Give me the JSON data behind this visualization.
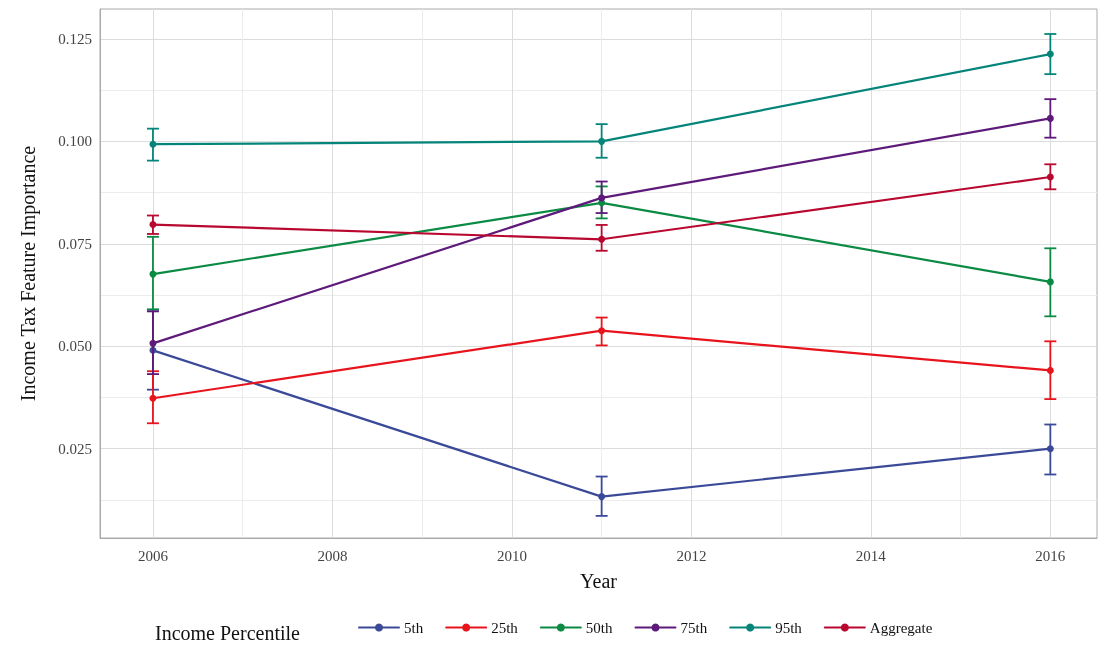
{
  "chart_data": {
    "type": "line",
    "xlabel": "Year",
    "ylabel": "Income Tax Feature Importance",
    "legend_title": "Income Percentile",
    "legend": "bottom",
    "grid": true,
    "marker": "circle",
    "line_style": "solid",
    "x": [
      2006,
      2011,
      2016
    ],
    "xlim": [
      2005.41,
      2016.52
    ],
    "xticks": [
      2006,
      2008,
      2010,
      2012,
      2014,
      2016
    ],
    "ylim": [
      0.0032,
      0.1323
    ],
    "yticks": [
      {
        "value": 0.025,
        "label": "0.025"
      },
      {
        "value": 0.05,
        "label": "0.050"
      },
      {
        "value": 0.075,
        "label": "0.075"
      },
      {
        "value": 0.1,
        "label": "0.100"
      },
      {
        "value": 0.125,
        "label": "0.125"
      }
    ],
    "series": [
      {
        "name": "5th",
        "color": "#3b4a98",
        "values": [
          0.049,
          0.0133,
          0.025
        ],
        "errors": [
          [
            0.0394,
            0.0589
          ],
          [
            0.0086,
            0.0182
          ],
          [
            0.0187,
            0.0309
          ]
        ]
      },
      {
        "name": "25th",
        "color": "#e8141c",
        "values": [
          0.0373,
          0.0538,
          0.0441
        ],
        "errors": [
          [
            0.0312,
            0.0439
          ],
          [
            0.0502,
            0.057
          ],
          [
            0.0371,
            0.0512
          ]
        ]
      },
      {
        "name": "50th",
        "color": "#0b8a44",
        "values": [
          0.0676,
          0.085,
          0.0657
        ],
        "errors": [
          [
            0.059,
            0.0767
          ],
          [
            0.0812,
            0.089
          ],
          [
            0.0573,
            0.0739
          ]
        ]
      },
      {
        "name": "75th",
        "color": "#5e1a7a",
        "values": [
          0.0507,
          0.0862,
          0.1056
        ],
        "errors": [
          [
            0.0432,
            0.0585
          ],
          [
            0.0825,
            0.0902
          ],
          [
            0.1009,
            0.1103
          ]
        ]
      },
      {
        "name": "95th",
        "color": "#05857a",
        "values": [
          0.0993,
          0.1,
          0.1213
        ],
        "errors": [
          [
            0.0953,
            0.1031
          ],
          [
            0.096,
            0.1042
          ],
          [
            0.1164,
            0.1262
          ]
        ]
      },
      {
        "name": "Aggregate",
        "color": "#b8082f",
        "values": [
          0.0797,
          0.0761,
          0.0913
        ],
        "errors": [
          [
            0.0774,
            0.0819
          ],
          [
            0.0733,
            0.0796
          ],
          [
            0.0883,
            0.0944
          ]
        ]
      }
    ]
  }
}
